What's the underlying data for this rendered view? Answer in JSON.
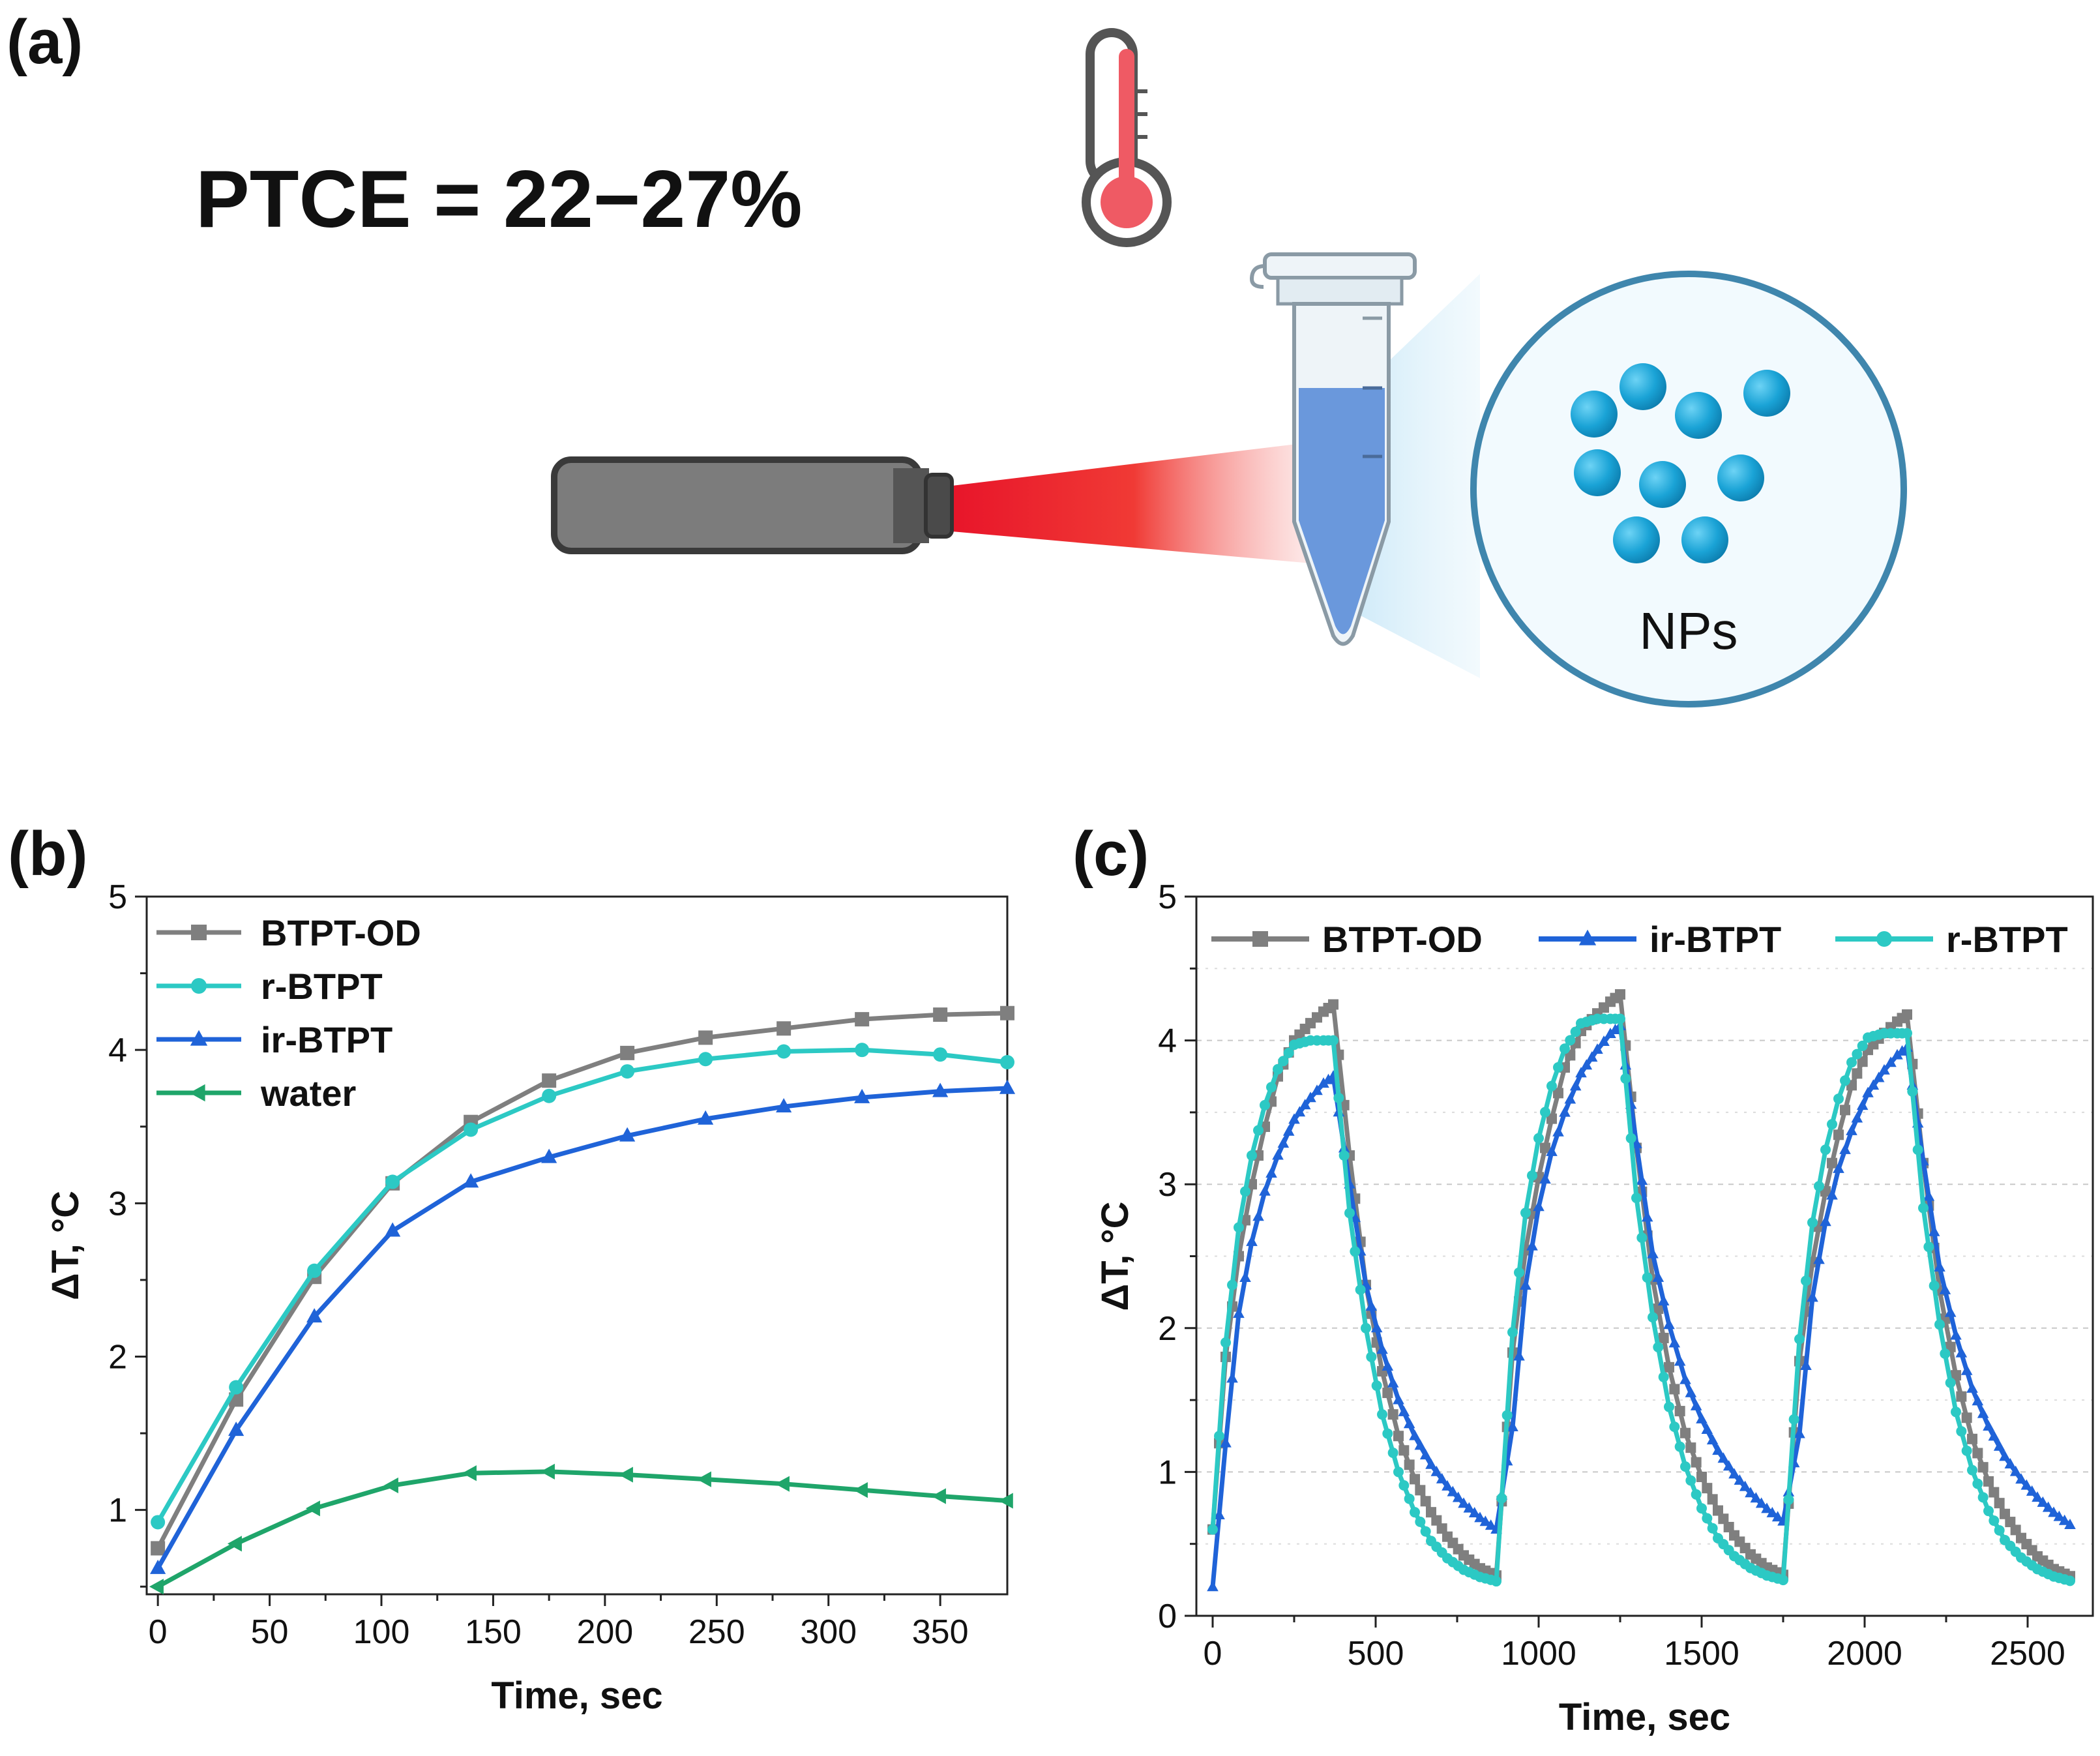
{
  "panel_a": {
    "label": "(a)",
    "equation": "PTCE = 22−27%",
    "particles_label": "NPs",
    "icons": [
      "thermometer-icon",
      "laser-pointer-icon",
      "microtube-icon",
      "nanoparticles-zoom-icon"
    ],
    "colors": {
      "laser": "#e8152a",
      "liquid": "#5b8ed8",
      "particle": "#1aa3d6",
      "device": "#7c7c7c"
    }
  },
  "chart_data": [
    {
      "id": "b",
      "label": "(b)",
      "type": "line",
      "xlabel": "Time, sec",
      "ylabel": "ΔT, °C",
      "xlim": [
        -5,
        380
      ],
      "ylim": [
        0.45,
        5
      ],
      "xticks": [
        0,
        50,
        100,
        150,
        200,
        250,
        300,
        350
      ],
      "yticks": [
        1,
        2,
        3,
        4,
        5
      ],
      "grid": false,
      "legend": "top-left",
      "series": [
        {
          "name": "BTPT-OD",
          "color": "#7f7f7f",
          "marker": "square",
          "x": [
            0,
            35,
            70,
            105,
            140,
            175,
            210,
            245,
            280,
            315,
            350,
            380
          ],
          "y": [
            0.75,
            1.72,
            2.52,
            3.13,
            3.53,
            3.8,
            3.98,
            4.08,
            4.14,
            4.2,
            4.23,
            4.24
          ]
        },
        {
          "name": "r-BTPT",
          "color": "#2cc9c4",
          "marker": "circle",
          "x": [
            0,
            35,
            70,
            105,
            140,
            175,
            210,
            245,
            280,
            315,
            350,
            380
          ],
          "y": [
            0.92,
            1.8,
            2.56,
            3.14,
            3.48,
            3.7,
            3.86,
            3.94,
            3.99,
            4.0,
            3.97,
            3.92
          ]
        },
        {
          "name": "ir-BTPT",
          "color": "#1f63d8",
          "marker": "triangle-up",
          "x": [
            0,
            35,
            70,
            105,
            140,
            175,
            210,
            245,
            280,
            315,
            350,
            380
          ],
          "y": [
            0.62,
            1.52,
            2.26,
            2.82,
            3.14,
            3.3,
            3.44,
            3.55,
            3.63,
            3.69,
            3.73,
            3.75
          ]
        },
        {
          "name": "water",
          "color": "#1fa56a",
          "marker": "triangle-left",
          "x": [
            0,
            35,
            70,
            105,
            140,
            175,
            210,
            245,
            280,
            315,
            350,
            380
          ],
          "y": [
            0.5,
            0.78,
            1.01,
            1.16,
            1.24,
            1.25,
            1.23,
            1.2,
            1.17,
            1.13,
            1.09,
            1.06
          ]
        }
      ]
    },
    {
      "id": "c",
      "label": "(c)",
      "type": "line",
      "xlabel": "Time, sec",
      "ylabel": "ΔT, °C",
      "xlim": [
        -50,
        2700
      ],
      "ylim": [
        0,
        5
      ],
      "xticks": [
        0,
        500,
        1000,
        1500,
        2000,
        2500
      ],
      "yticks": [
        0,
        1,
        2,
        3,
        4,
        5
      ],
      "grid": true,
      "legend": "top (horizontal)",
      "cycles": {
        "count": 3,
        "period": 880,
        "heating": 370,
        "cooling": 510
      },
      "series": [
        {
          "name": "BTPT-OD",
          "color": "#7f7f7f",
          "marker": "square",
          "heating": [
            [
              0,
              0.6
            ],
            [
              40,
              1.8
            ],
            [
              80,
              2.5
            ],
            [
              120,
              3.0
            ],
            [
              160,
              3.4
            ],
            [
              200,
              3.75
            ],
            [
              250,
              4.0
            ],
            [
              300,
              4.12
            ],
            [
              340,
              4.2
            ],
            [
              370,
              4.25
            ]
          ],
          "cooling": [
            [
              370,
              4.25
            ],
            [
              420,
              3.2
            ],
            [
              470,
              2.3
            ],
            [
              520,
              1.7
            ],
            [
              570,
              1.25
            ],
            [
              620,
              0.95
            ],
            [
              670,
              0.72
            ],
            [
              720,
              0.55
            ],
            [
              770,
              0.42
            ],
            [
              820,
              0.33
            ],
            [
              870,
              0.28
            ]
          ],
          "peaks": [
            4.25,
            4.32,
            4.18
          ]
        },
        {
          "name": "ir-BTPT",
          "color": "#1f63d8",
          "marker": "triangle-up",
          "heating": [
            [
              0,
              0.2
            ],
            [
              40,
              1.2
            ],
            [
              80,
              2.1
            ],
            [
              120,
              2.6
            ],
            [
              160,
              2.95
            ],
            [
              200,
              3.2
            ],
            [
              250,
              3.45
            ],
            [
              300,
              3.6
            ],
            [
              340,
              3.7
            ],
            [
              370,
              3.75
            ]
          ],
          "cooling": [
            [
              370,
              3.75
            ],
            [
              420,
              3.0
            ],
            [
              470,
              2.3
            ],
            [
              520,
              1.85
            ],
            [
              570,
              1.5
            ],
            [
              620,
              1.25
            ],
            [
              670,
              1.05
            ],
            [
              720,
              0.9
            ],
            [
              770,
              0.78
            ],
            [
              820,
              0.68
            ],
            [
              870,
              0.6
            ]
          ],
          "peaks": [
            3.75,
            4.1,
            3.95
          ]
        },
        {
          "name": "r-BTPT",
          "color": "#2cc9c4",
          "marker": "circle",
          "heating": [
            [
              0,
              0.6
            ],
            [
              40,
              1.9
            ],
            [
              80,
              2.7
            ],
            [
              120,
              3.2
            ],
            [
              160,
              3.55
            ],
            [
              200,
              3.8
            ],
            [
              250,
              3.97
            ],
            [
              300,
              4.05
            ],
            [
              340,
              4.02
            ],
            [
              370,
              4.0
            ]
          ],
          "cooling": [
            [
              370,
              4.0
            ],
            [
              420,
              2.8
            ],
            [
              470,
              2.0
            ],
            [
              520,
              1.4
            ],
            [
              570,
              1.0
            ],
            [
              620,
              0.72
            ],
            [
              670,
              0.52
            ],
            [
              720,
              0.4
            ],
            [
              770,
              0.32
            ],
            [
              820,
              0.27
            ],
            [
              870,
              0.24
            ]
          ],
          "peaks": [
            4.0,
            4.15,
            4.05
          ]
        }
      ]
    }
  ]
}
